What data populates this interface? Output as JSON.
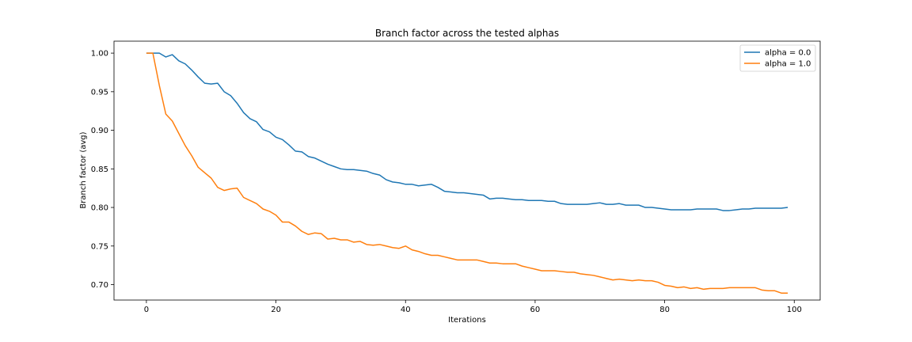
{
  "chart_data": {
    "type": "line",
    "title": "Branch factor across the tested alphas",
    "xlabel": "Iterations",
    "ylabel": "Branch factor (avg)",
    "xlim": [
      -5,
      104
    ],
    "ylim": [
      0.68,
      1.0155
    ],
    "xticks": [
      0,
      20,
      40,
      60,
      80,
      100
    ],
    "yticks": [
      0.7,
      0.75,
      0.8,
      0.85,
      0.9,
      0.95,
      1.0
    ],
    "xtick_labels": [
      "0",
      "20",
      "40",
      "60",
      "80",
      "100"
    ],
    "ytick_labels": [
      "0.70",
      "0.75",
      "0.80",
      "0.85",
      "0.90",
      "0.95",
      "1.00"
    ],
    "grid": false,
    "legend_position": "top-right",
    "colors": {
      "alpha_0": "#1f77b4",
      "alpha_1": "#ff7f0e"
    },
    "series": [
      {
        "name": "alpha = 0.0",
        "color": "#1f77b4",
        "x": [
          0,
          1,
          2,
          3,
          4,
          5,
          6,
          7,
          8,
          9,
          10,
          11,
          12,
          13,
          14,
          15,
          16,
          17,
          18,
          19,
          20,
          21,
          22,
          23,
          24,
          25,
          26,
          27,
          28,
          29,
          30,
          31,
          32,
          33,
          34,
          35,
          36,
          37,
          38,
          39,
          40,
          41,
          42,
          43,
          44,
          45,
          46,
          47,
          48,
          49,
          50,
          51,
          52,
          53,
          54,
          55,
          56,
          57,
          58,
          59,
          60,
          61,
          62,
          63,
          64,
          65,
          66,
          67,
          68,
          69,
          70,
          71,
          72,
          73,
          74,
          75,
          76,
          77,
          78,
          79,
          80,
          81,
          82,
          83,
          84,
          85,
          86,
          87,
          88,
          89,
          90,
          91,
          92,
          93,
          94,
          95,
          96,
          97,
          98,
          99
        ],
        "y": [
          1.0,
          1.0,
          1.0,
          0.995,
          0.998,
          0.99,
          0.986,
          0.978,
          0.969,
          0.961,
          0.96,
          0.961,
          0.95,
          0.945,
          0.935,
          0.923,
          0.915,
          0.911,
          0.901,
          0.898,
          0.891,
          0.888,
          0.881,
          0.873,
          0.872,
          0.866,
          0.864,
          0.86,
          0.856,
          0.853,
          0.85,
          0.849,
          0.849,
          0.848,
          0.847,
          0.844,
          0.842,
          0.836,
          0.833,
          0.832,
          0.83,
          0.83,
          0.828,
          0.829,
          0.83,
          0.826,
          0.821,
          0.82,
          0.819,
          0.819,
          0.818,
          0.817,
          0.816,
          0.811,
          0.812,
          0.812,
          0.811,
          0.81,
          0.81,
          0.809,
          0.809,
          0.809,
          0.808,
          0.808,
          0.805,
          0.804,
          0.804,
          0.804,
          0.804,
          0.805,
          0.806,
          0.804,
          0.804,
          0.805,
          0.803,
          0.803,
          0.803,
          0.8,
          0.8,
          0.799,
          0.798,
          0.797,
          0.797,
          0.797,
          0.797,
          0.798,
          0.798,
          0.798,
          0.798,
          0.796,
          0.796,
          0.797,
          0.798,
          0.798,
          0.799,
          0.799,
          0.799,
          0.799,
          0.799,
          0.8
        ]
      },
      {
        "name": "alpha = 1.0",
        "color": "#ff7f0e",
        "x": [
          0,
          1,
          2,
          3,
          4,
          5,
          6,
          7,
          8,
          9,
          10,
          11,
          12,
          13,
          14,
          15,
          16,
          17,
          18,
          19,
          20,
          21,
          22,
          23,
          24,
          25,
          26,
          27,
          28,
          29,
          30,
          31,
          32,
          33,
          34,
          35,
          36,
          37,
          38,
          39,
          40,
          41,
          42,
          43,
          44,
          45,
          46,
          47,
          48,
          49,
          50,
          51,
          52,
          53,
          54,
          55,
          56,
          57,
          58,
          59,
          60,
          61,
          62,
          63,
          64,
          65,
          66,
          67,
          68,
          69,
          70,
          71,
          72,
          73,
          74,
          75,
          76,
          77,
          78,
          79,
          80,
          81,
          82,
          83,
          84,
          85,
          86,
          87,
          88,
          89,
          90,
          91,
          92,
          93,
          94,
          95,
          96,
          97,
          98,
          99
        ],
        "y": [
          1.0,
          1.0,
          0.958,
          0.921,
          0.912,
          0.896,
          0.88,
          0.867,
          0.852,
          0.845,
          0.838,
          0.826,
          0.822,
          0.824,
          0.825,
          0.813,
          0.809,
          0.805,
          0.798,
          0.795,
          0.79,
          0.781,
          0.781,
          0.776,
          0.769,
          0.765,
          0.767,
          0.766,
          0.759,
          0.76,
          0.758,
          0.758,
          0.755,
          0.756,
          0.752,
          0.751,
          0.752,
          0.75,
          0.748,
          0.747,
          0.75,
          0.745,
          0.743,
          0.74,
          0.738,
          0.738,
          0.736,
          0.734,
          0.732,
          0.732,
          0.732,
          0.732,
          0.73,
          0.728,
          0.728,
          0.727,
          0.727,
          0.727,
          0.724,
          0.722,
          0.72,
          0.718,
          0.718,
          0.718,
          0.717,
          0.716,
          0.716,
          0.714,
          0.713,
          0.712,
          0.71,
          0.708,
          0.706,
          0.707,
          0.706,
          0.705,
          0.706,
          0.705,
          0.705,
          0.703,
          0.699,
          0.698,
          0.696,
          0.697,
          0.695,
          0.696,
          0.694,
          0.695,
          0.695,
          0.695,
          0.696,
          0.696,
          0.696,
          0.696,
          0.696,
          0.693,
          0.692,
          0.692,
          0.689,
          0.689
        ]
      }
    ]
  }
}
